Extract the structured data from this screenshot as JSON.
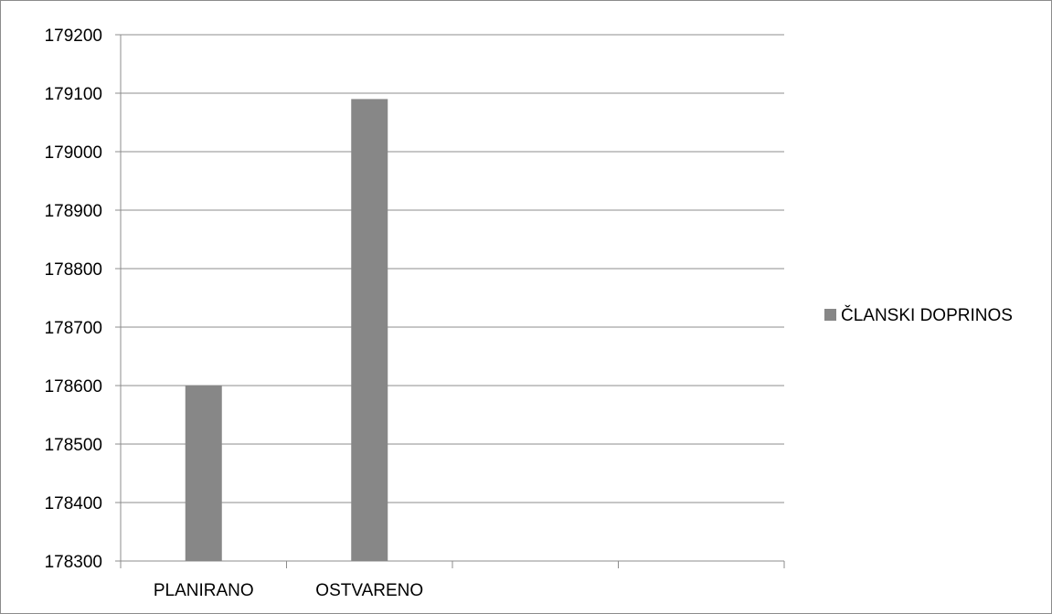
{
  "chart_data": {
    "type": "bar",
    "categories": [
      "PLANIRANO",
      "OSTVARENO",
      "",
      ""
    ],
    "series": [
      {
        "name": "ČLANSKI DOPRINOS",
        "values": [
          178600,
          179090,
          null,
          null
        ],
        "color": "#878787"
      }
    ],
    "ylim": [
      178300,
      179200
    ],
    "yticks": [
      "179200",
      "179100",
      "179000",
      "178900",
      "178800",
      "178700",
      "178600",
      "178500",
      "178400",
      "178300"
    ],
    "grid": true,
    "legend": "right",
    "title": "",
    "xlabel": "",
    "ylabel": ""
  },
  "colors": {
    "bar": "#878787",
    "grid": "#8c8c8c",
    "frame": "#8c8c8c"
  }
}
